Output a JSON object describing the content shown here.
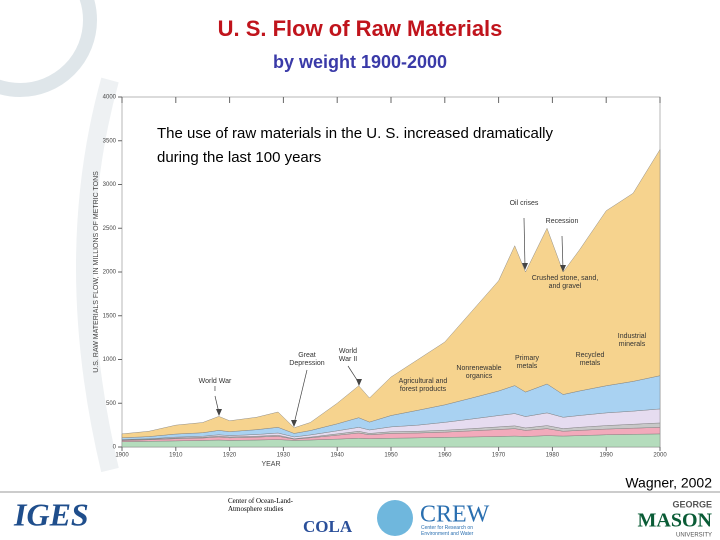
{
  "header": {
    "title": "U. S. Flow of Raw Materials",
    "subtitle": "by weight 1900-2000"
  },
  "chart_data": {
    "type": "stacked-area",
    "note": "The use of raw materials in the U. S. increased dramatically during the last 100 years",
    "x_label": "YEAR",
    "y_label": "U.S. RAW MATERIALS FLOW, IN MILLIONS OF METRIC TONS",
    "x": [
      1900,
      1905,
      1910,
      1915,
      1918,
      1920,
      1925,
      1929,
      1932,
      1935,
      1940,
      1944,
      1946,
      1950,
      1955,
      1960,
      1965,
      1970,
      1973,
      1975,
      1979,
      1982,
      1985,
      1990,
      1995,
      2000
    ],
    "series": [
      {
        "name": "Agricultural and forest products",
        "color": "#b4dcbc",
        "values": [
          60,
          65,
          70,
          75,
          80,
          75,
          80,
          85,
          75,
          80,
          90,
          100,
          95,
          100,
          105,
          110,
          115,
          120,
          125,
          120,
          130,
          125,
          130,
          140,
          145,
          150
        ]
      },
      {
        "name": "Primary metals",
        "color": "#f2aabb",
        "values": [
          15,
          18,
          25,
          28,
          35,
          30,
          33,
          38,
          15,
          25,
          45,
          60,
          45,
          55,
          55,
          60,
          70,
          80,
          85,
          70,
          80,
          55,
          60,
          65,
          70,
          75
        ]
      },
      {
        "name": "Recycled metals",
        "color": "#c8c8c8",
        "values": [
          5,
          5,
          8,
          8,
          10,
          10,
          10,
          12,
          5,
          8,
          15,
          20,
          15,
          20,
          20,
          22,
          25,
          30,
          32,
          28,
          35,
          30,
          35,
          40,
          45,
          50
        ]
      },
      {
        "name": "Nonrenewable organics",
        "color": "#e6dcf0",
        "values": [
          5,
          6,
          10,
          12,
          15,
          15,
          20,
          25,
          20,
          25,
          35,
          45,
          40,
          55,
          70,
          90,
          110,
          130,
          140,
          130,
          145,
          130,
          135,
          145,
          150,
          160
        ]
      },
      {
        "name": "Industrial minerals",
        "color": "#a9d2f2",
        "values": [
          20,
          25,
          35,
          40,
          50,
          45,
          55,
          65,
          40,
          50,
          80,
          110,
          90,
          130,
          170,
          200,
          240,
          280,
          320,
          280,
          330,
          260,
          280,
          310,
          340,
          380
        ]
      },
      {
        "name": "Crushed stone, sand, and gravel",
        "color": "#f6d38e",
        "values": [
          45,
          61,
          102,
          117,
          160,
          125,
          142,
          175,
          65,
          92,
          235,
          365,
          275,
          440,
          580,
          718,
          990,
          1260,
          1598,
          1372,
          1780,
          1400,
          1610,
          2000,
          2150,
          2585
        ]
      }
    ],
    "annotations": [
      "World War I",
      "Great Depression",
      "World War II",
      "Oil crises",
      "Recession"
    ],
    "xlim": [
      1900,
      2000
    ],
    "ylim": [
      0,
      4000
    ],
    "xticks": [
      1900,
      1910,
      1920,
      1930,
      1940,
      1950,
      1960,
      1970,
      1980,
      1990,
      2000
    ],
    "yticks": [
      0,
      500,
      1000,
      1500,
      2000,
      2500,
      3000,
      3500,
      4000
    ],
    "grid": false
  },
  "source": "Wagner, 2002",
  "footer": {
    "iges": "IGES",
    "cola_name": "Center of Ocean-Land-Atmosphere studies",
    "cola": "COLA",
    "crew": "CREW",
    "crew_name": "Center for Research on Environment and Water",
    "gmu_top": "GEORGE",
    "gmu_mid": "MASON",
    "gmu_bottom": "UNIVERSITY"
  }
}
